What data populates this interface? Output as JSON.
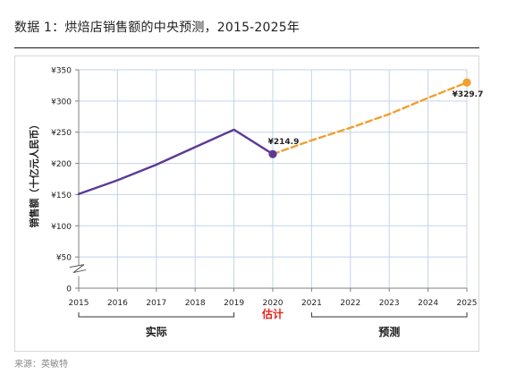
{
  "figure": {
    "title": "数据 1：烘焙店销售额的中央预测，2015-2025年",
    "source": "来源：英敏特"
  },
  "chart_data": {
    "type": "line",
    "title": "数据 1：烘焙店销售额的中央预测，2015-2025年",
    "xlabel": "",
    "ylabel": "销售额（十亿元人民币）",
    "x": [
      2015,
      2016,
      2017,
      2018,
      2019,
      2020,
      2021,
      2022,
      2023,
      2024,
      2025
    ],
    "x_tick_labels": [
      "2015",
      "2016",
      "2017",
      "2018",
      "2019",
      "2020",
      "2021",
      "2022",
      "2023",
      "2024",
      "2025"
    ],
    "y_tick_labels": [
      "0",
      "¥50",
      "¥100",
      "¥150",
      "¥200",
      "¥250",
      "¥300",
      "¥350"
    ],
    "y_ticks": [
      0,
      50,
      100,
      150,
      200,
      250,
      300,
      350
    ],
    "ylim": [
      0,
      350
    ],
    "y_axis_break": true,
    "grid": true,
    "series": [
      {
        "segment": "actual",
        "style": "solid",
        "color": "#5c3a93",
        "x": [
          2015,
          2016,
          2017,
          2018,
          2019,
          2020
        ],
        "values": [
          151,
          173,
          198,
          226,
          254,
          214.9
        ]
      },
      {
        "segment": "forecast",
        "style": "dashed",
        "color": "#f0a030",
        "x": [
          2020,
          2021,
          2022,
          2023,
          2024,
          2025
        ],
        "values": [
          214.9,
          237,
          257,
          279,
          305,
          329.7
        ]
      }
    ],
    "markers": [
      {
        "x": 2020,
        "value": 214.9,
        "color": "#5c3a93"
      },
      {
        "x": 2025,
        "value": 329.7,
        "color": "#f0a030"
      }
    ],
    "annotations": [
      {
        "x": 2020,
        "value": 214.9,
        "label": "¥214.9"
      },
      {
        "x": 2025,
        "value": 329.7,
        "label": "¥329.7"
      }
    ],
    "periods": [
      {
        "label": "实际",
        "from": 2015,
        "to": 2019,
        "color": "#1a1a1a"
      },
      {
        "label": "估计",
        "from": 2020,
        "to": 2020,
        "color": "#e8231f"
      },
      {
        "label": "预测",
        "from": 2021,
        "to": 2025,
        "color": "#1a1a1a"
      }
    ]
  }
}
